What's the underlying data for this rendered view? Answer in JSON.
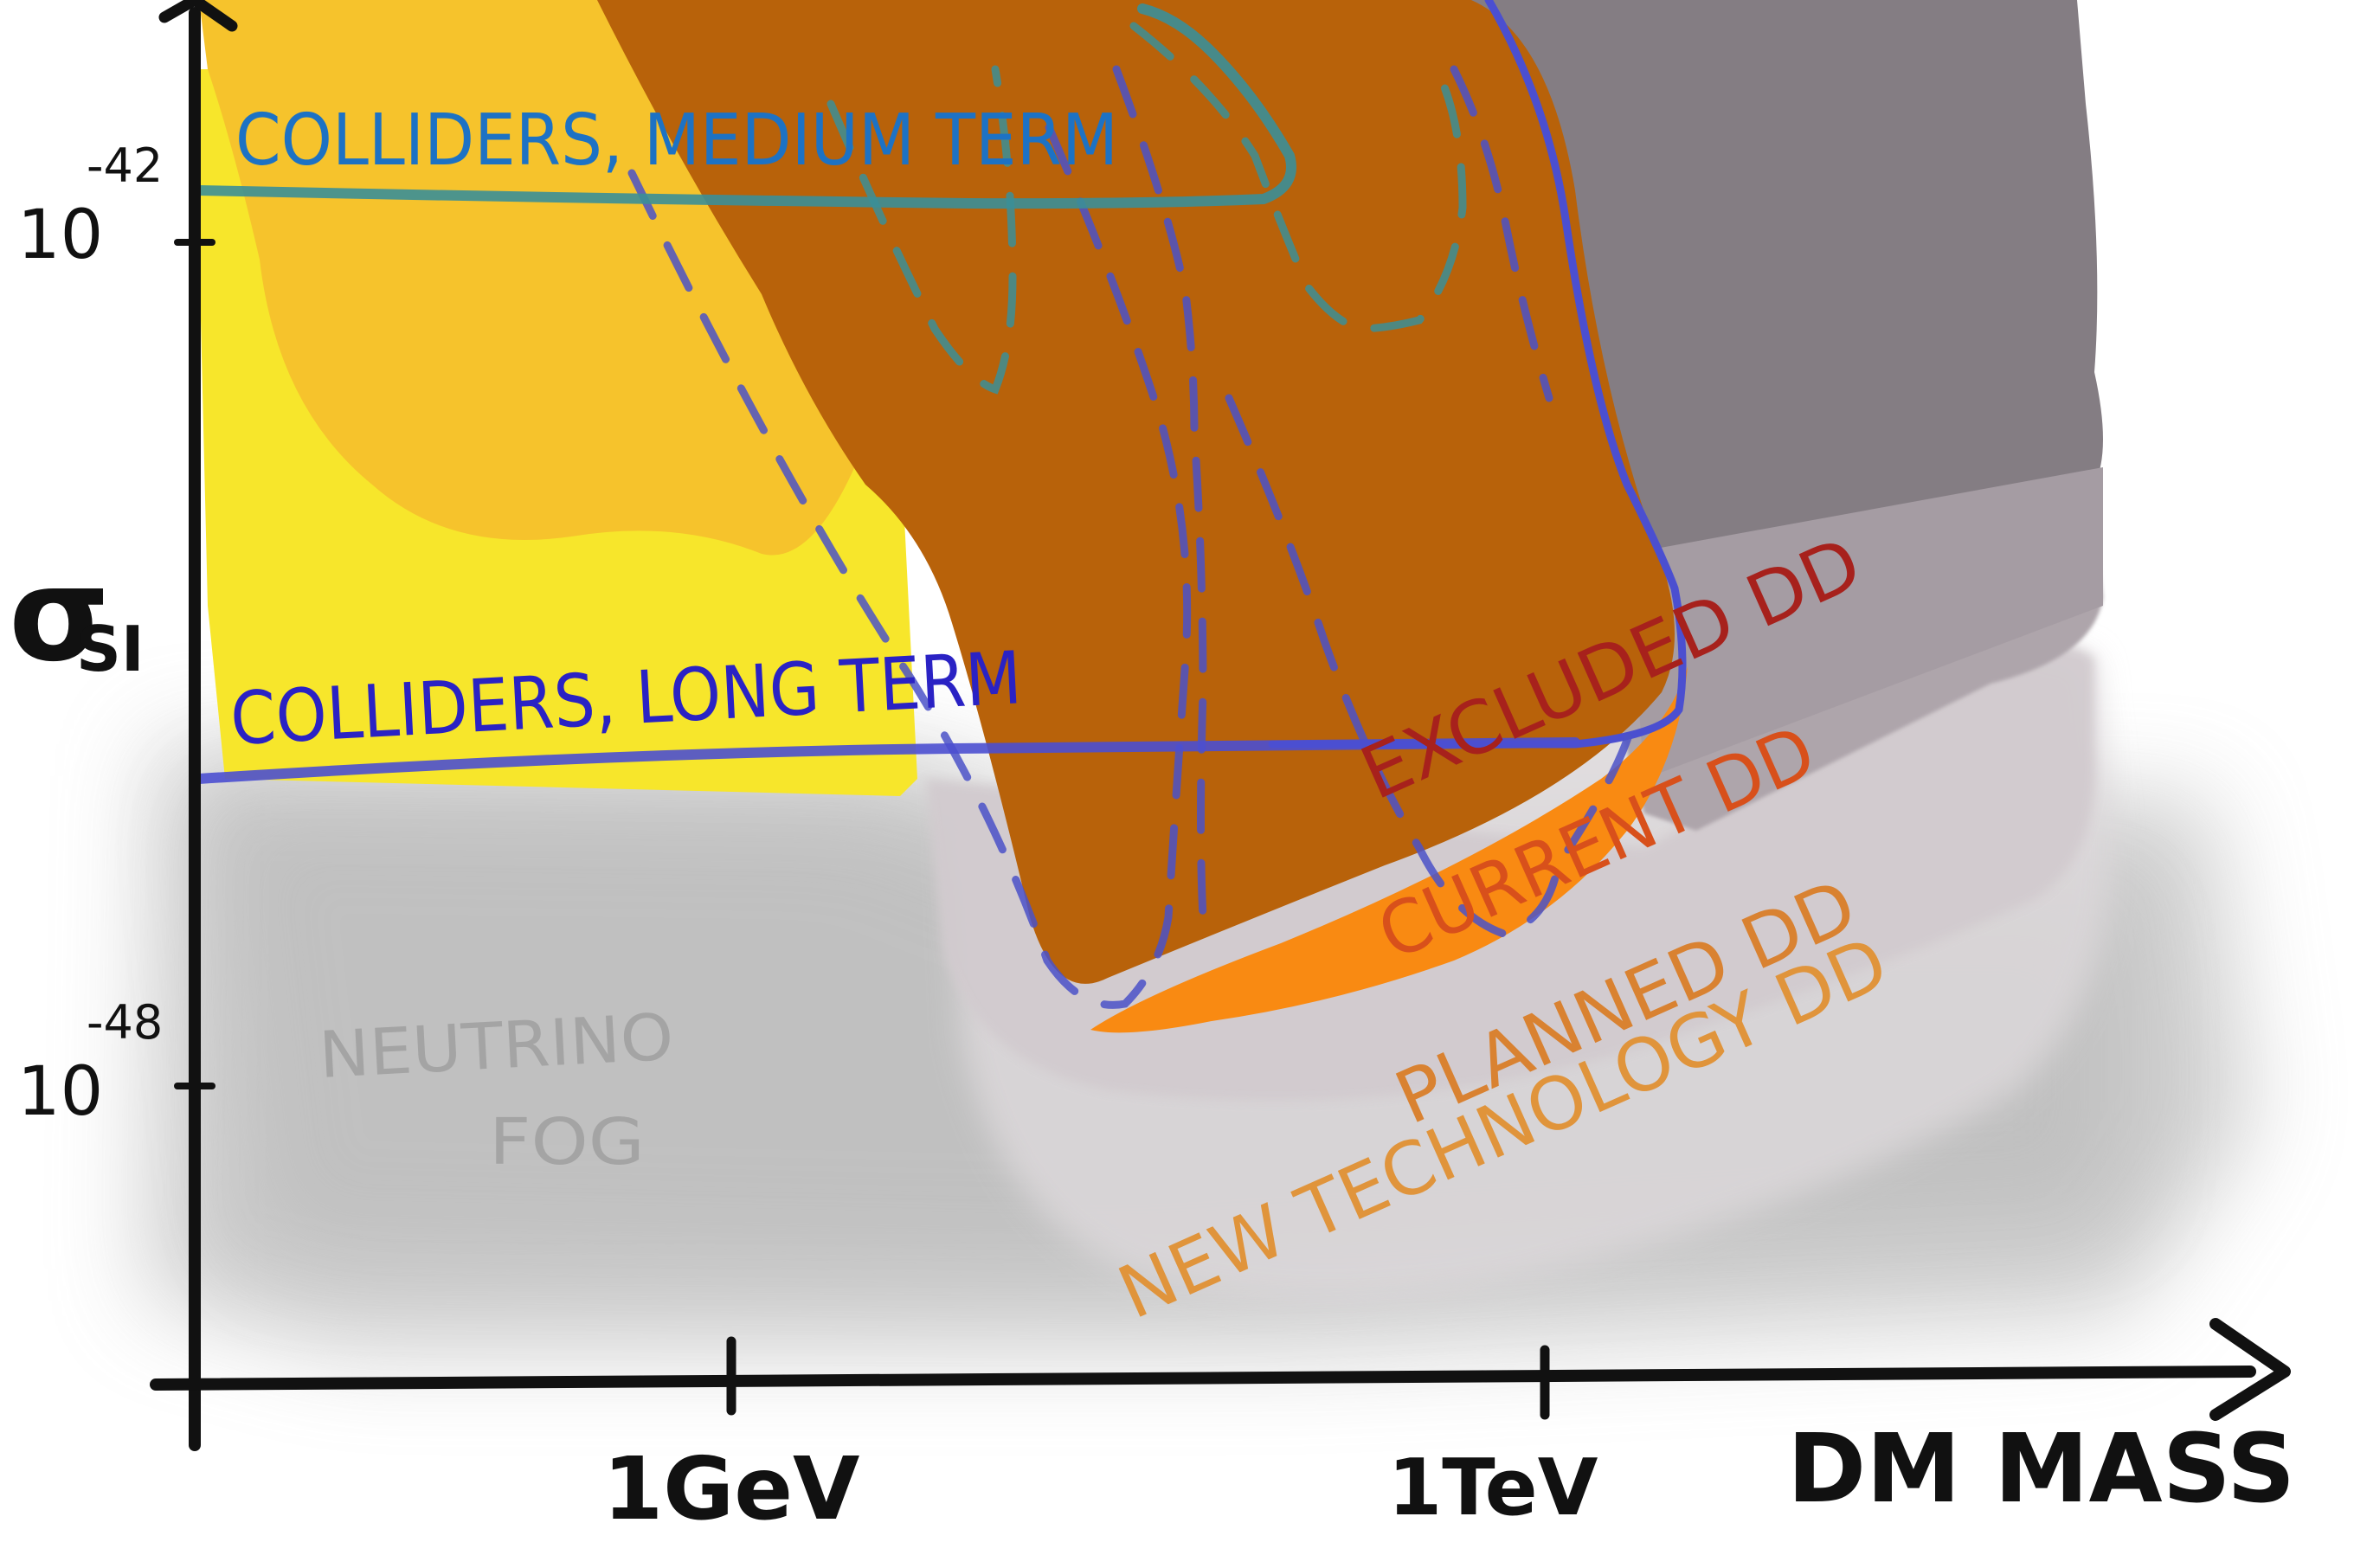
{
  "axes": {
    "y_label_main": "σ",
    "y_label_sub": "SI",
    "x_label": "DM MASS",
    "y_ticks": [
      {
        "base": "10",
        "exponent": "-42"
      },
      {
        "base": "10",
        "exponent": "-48"
      }
    ],
    "x_ticks": [
      "1GeV",
      "1TeV"
    ]
  },
  "regions": {
    "colliders_medium": "COLLIDERS, MEDIUM TERM",
    "colliders_long": "COLLIDERS, LONG TERM",
    "excluded_dd": "EXCLUDED DD",
    "current_dd": "CURRENT DD",
    "planned_dd": "PLANNED DD",
    "new_tech_dd": "NEW TECHNOLOGY DD",
    "neutrino_fog_line1": "NEUTRINO",
    "neutrino_fog_line2": "FOG"
  },
  "colors": {
    "axis": "#111111",
    "fog": "#b8b8b8",
    "yellow": "#f6e62a",
    "amber": "#f6c32c",
    "excluded": "#b8620a",
    "current": "#f98a12",
    "dark_gray": "#857f84",
    "mid_gray": "#ada4ab",
    "light_gray": "#d6cfd3",
    "collider_medium_line": "#3b8f97",
    "collider_long_line": "#4b4fd0",
    "text_medium": "#1d72c4",
    "text_long": "#2a22c4",
    "text_excluded": "#a7211c",
    "text_current": "#d8501b",
    "text_planned": "#d98231",
    "text_newtech": "#e0943b",
    "text_fog": "#a4a4a4"
  }
}
